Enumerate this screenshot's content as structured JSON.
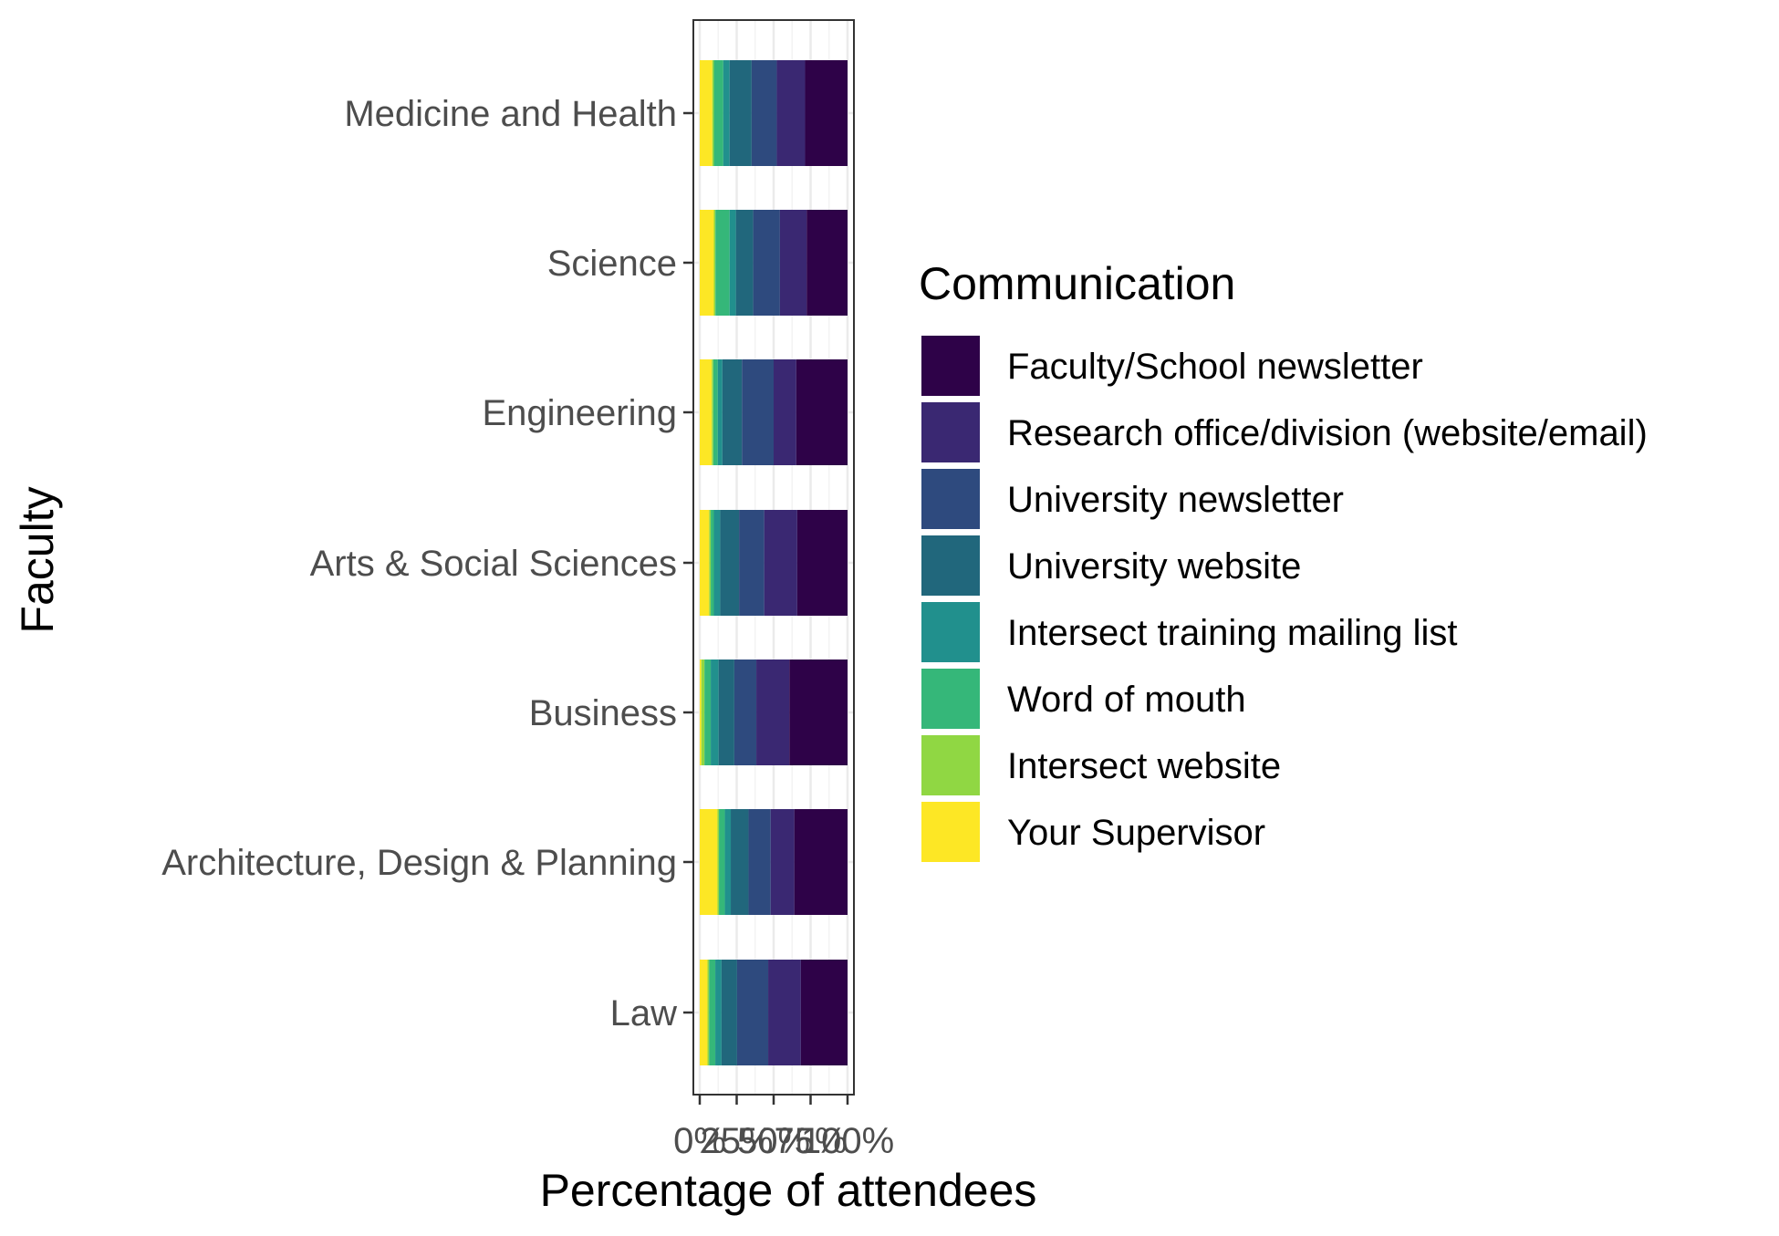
{
  "chart_data": {
    "type": "bar",
    "orientation": "horizontal",
    "stacked": true,
    "position": "fill",
    "title": "",
    "xlabel": "Percentage of attendees",
    "ylabel": "Faculty",
    "xlim": [
      0,
      1
    ],
    "x_ticks": [
      "0%",
      "25%",
      "50%",
      "75%",
      "100%"
    ],
    "grid": true,
    "legend_position": "right",
    "legend_title": "Communication",
    "categories": [
      "Medicine and Health",
      "Science",
      "Engineering",
      "Arts & Social Sciences",
      "Business",
      "Architecture, Design & Planning",
      "Law"
    ],
    "series": [
      {
        "name": "Your Supervisor",
        "color": "#FDE725",
        "values": [
          0.08,
          0.09,
          0.08,
          0.06,
          0.01,
          0.12,
          0.05
        ]
      },
      {
        "name": "Intersect website",
        "color": "#90D743",
        "values": [
          0.01,
          0.01,
          0.01,
          0.01,
          0.02,
          0.01,
          0.01
        ]
      },
      {
        "name": "Word of mouth",
        "color": "#35B779",
        "values": [
          0.06,
          0.09,
          0.03,
          0.02,
          0.04,
          0.04,
          0.04
        ]
      },
      {
        "name": "Intersect training mailing list",
        "color": "#21908D",
        "values": [
          0.04,
          0.04,
          0.03,
          0.04,
          0.05,
          0.04,
          0.04
        ]
      },
      {
        "name": "University website",
        "color": "#21677C",
        "values": [
          0.14,
          0.11,
          0.13,
          0.12,
          0.1,
          0.12,
          0.1
        ]
      },
      {
        "name": "University newsletter",
        "color": "#2E4A7E",
        "values": [
          0.16,
          0.17,
          0.21,
          0.16,
          0.14,
          0.15,
          0.2
        ]
      },
      {
        "name": "Research office/division (website/email)",
        "color": "#3A2872",
        "values": [
          0.18,
          0.17,
          0.15,
          0.21,
          0.21,
          0.16,
          0.21
        ]
      },
      {
        "name": "Faculty/School newsletter",
        "color": "#2E0248",
        "values": [
          0.27,
          0.26,
          0.34,
          0.32,
          0.37,
          0.36,
          0.3
        ]
      }
    ]
  }
}
